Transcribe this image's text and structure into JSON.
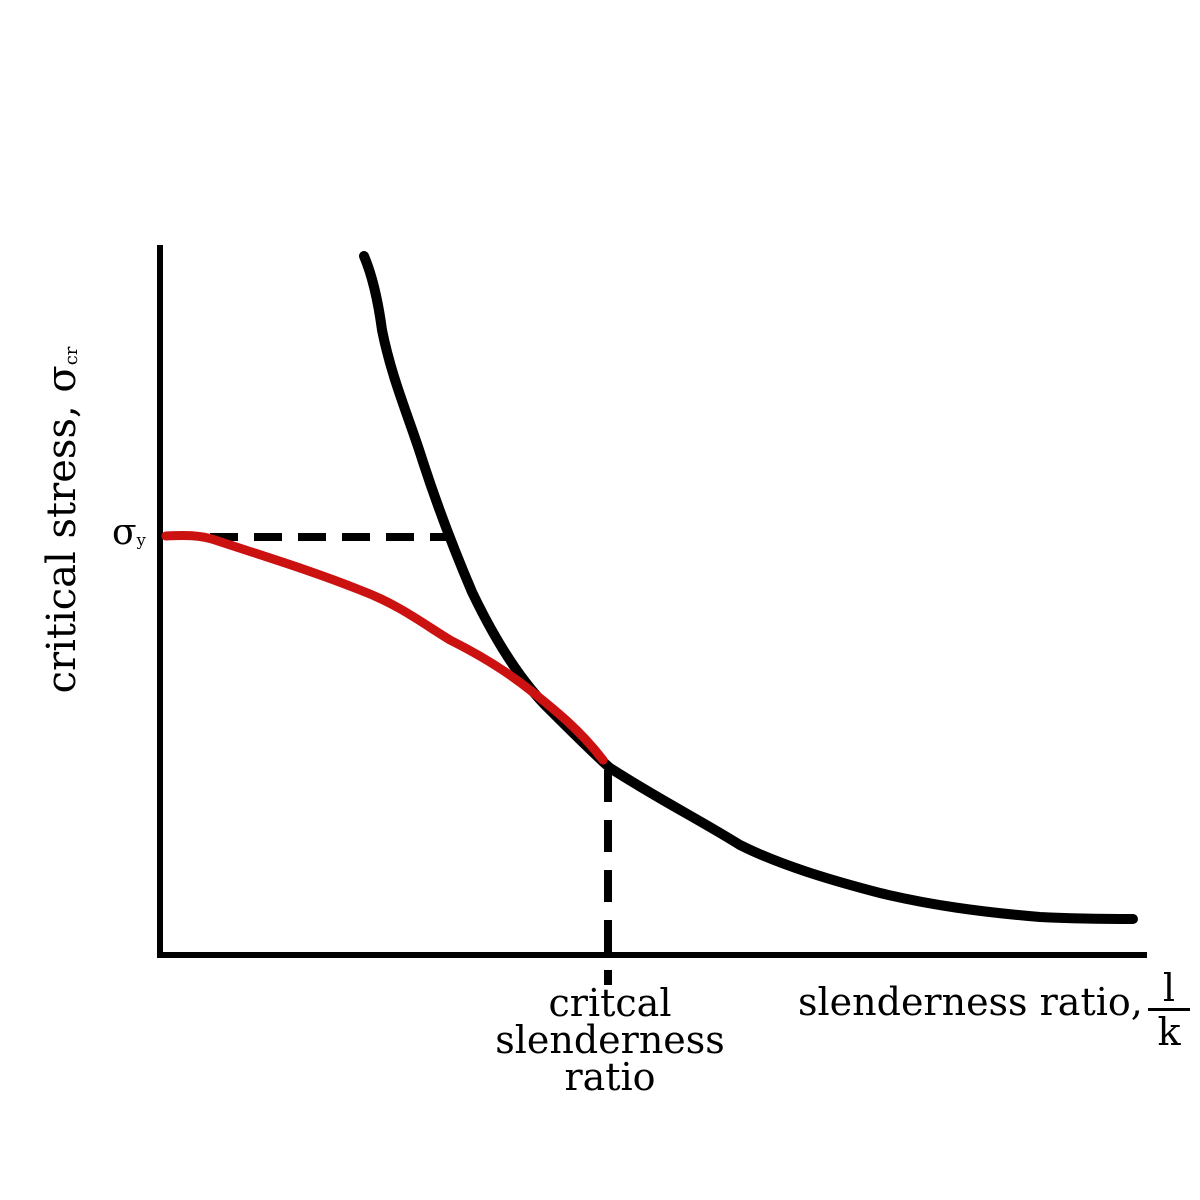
{
  "labels": {
    "y_axis_text": "critical stress, σ",
    "y_axis_sub": "cr",
    "sigma_y_symbol": "σ",
    "sigma_y_sub": "y",
    "critical_line1": "critcal",
    "critical_line2": "slenderness",
    "critical_line3": "ratio",
    "x_axis_text": "slenderness ratio,",
    "fraction_numerator": "l",
    "fraction_denominator": "k"
  },
  "colors": {
    "axes": "#000000",
    "euler_curve": "#000000",
    "inelastic_curve": "#cc1111",
    "dashed_lines": "#000000"
  }
}
